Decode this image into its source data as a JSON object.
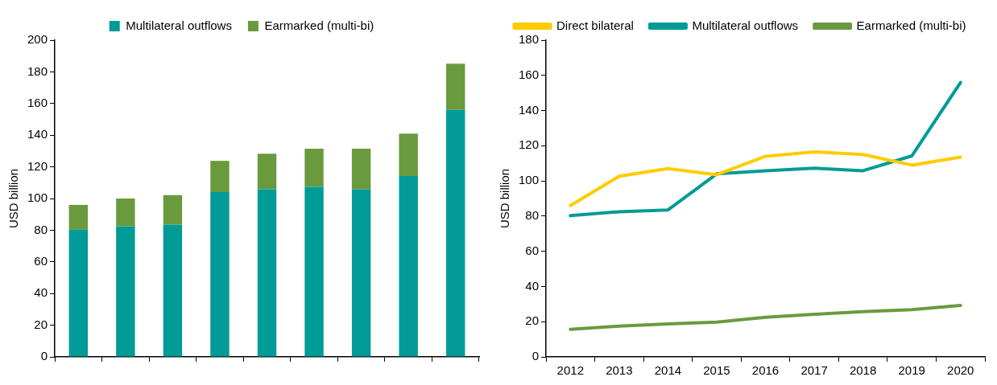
{
  "chart_data": [
    {
      "type": "bar",
      "stacked": true,
      "ylabel": "USD billion",
      "categories": [
        null,
        null,
        null,
        null,
        null,
        null,
        null,
        null,
        null
      ],
      "ylim": [
        0,
        200
      ],
      "yticks": [
        0,
        20,
        40,
        60,
        80,
        100,
        120,
        140,
        160,
        180,
        200
      ],
      "grid": false,
      "legend": "top",
      "series": [
        {
          "name": "Multilateral outflows",
          "color": "#009b96",
          "values": [
            80.3,
            82.5,
            83.5,
            104,
            105.8,
            107.3,
            105.8,
            114.2,
            156
          ]
        },
        {
          "name": "Earmarked (multi-bi)",
          "color": "#6a9a3e",
          "values": [
            15.7,
            17.5,
            18.7,
            19.8,
            22.5,
            24.2,
            25.7,
            26.8,
            29.2
          ]
        }
      ]
    },
    {
      "type": "line",
      "ylabel": "USD billion",
      "categories": [
        "2012",
        "2013",
        "2014",
        "2015",
        "2016",
        "2017",
        "2018",
        "2019",
        "2020"
      ],
      "ylim": [
        0,
        180
      ],
      "yticks": [
        0,
        20,
        40,
        60,
        80,
        100,
        120,
        140,
        160,
        180
      ],
      "grid": false,
      "legend": "top",
      "marker": "none",
      "series": [
        {
          "name": "Direct bilateral",
          "color": "#ffcc00",
          "values": [
            86,
            102.7,
            107,
            103.5,
            114,
            116.5,
            115,
            109,
            113.5
          ]
        },
        {
          "name": "Multilateral outflows",
          "color": "#009b96",
          "values": [
            80.3,
            82.5,
            83.5,
            104,
            105.8,
            107.3,
            105.8,
            114.2,
            156
          ]
        },
        {
          "name": "Earmarked (multi-bi)",
          "color": "#6a9a3e",
          "values": [
            15.7,
            17.5,
            18.7,
            19.8,
            22.5,
            24.2,
            25.7,
            26.8,
            29.2
          ]
        }
      ]
    }
  ]
}
